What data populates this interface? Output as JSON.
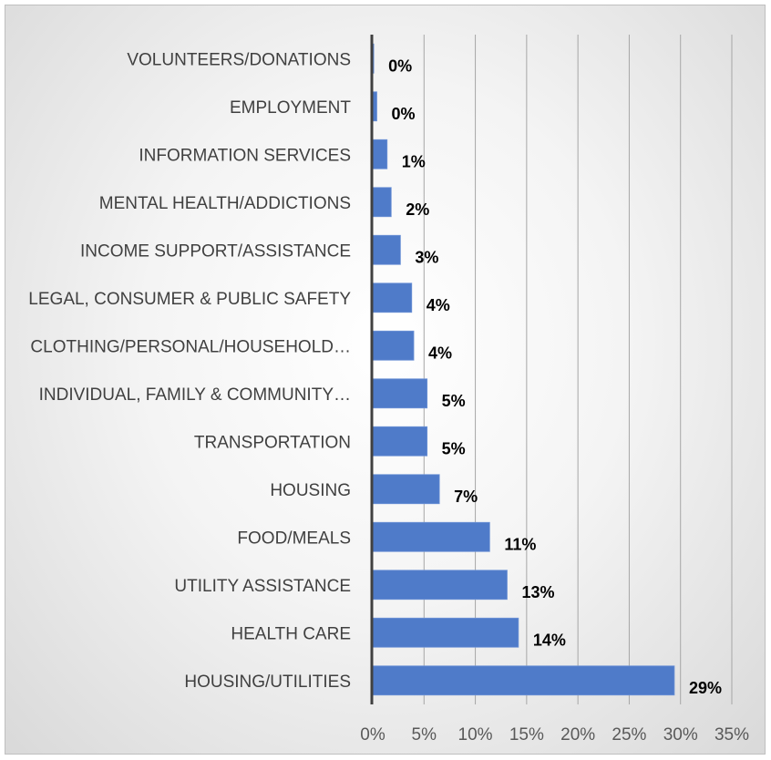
{
  "chart_data": {
    "type": "bar",
    "orientation": "horizontal",
    "categories": [
      "VOLUNTEERS/DONATIONS",
      "EMPLOYMENT",
      "INFORMATION SERVICES",
      "MENTAL HEALTH/ADDICTIONS",
      "INCOME SUPPORT/ASSISTANCE",
      "LEGAL, CONSUMER & PUBLIC SAFETY",
      "CLOTHING/PERSONAL/HOUSEHOLD…",
      "INDIVIDUAL, FAMILY & COMMUNITY…",
      "TRANSPORTATION",
      "HOUSING",
      "FOOD/MEALS",
      "UTILITY ASSISTANCE",
      "HEALTH CARE",
      "HOUSING/UTILITIES"
    ],
    "values": [
      0.1,
      0.4,
      1.4,
      1.8,
      2.7,
      3.8,
      4.0,
      5.3,
      5.3,
      6.5,
      11.4,
      13.1,
      14.2,
      29.4
    ],
    "data_labels": [
      "0%",
      "0%",
      "1%",
      "2%",
      "3%",
      "4%",
      "4%",
      "5%",
      "5%",
      "7%",
      "11%",
      "13%",
      "14%",
      "29%"
    ],
    "x_ticks": [
      "0%",
      "5%",
      "10%",
      "15%",
      "20%",
      "25%",
      "30%",
      "35%"
    ],
    "xlim": [
      0,
      35
    ],
    "title": "",
    "xlabel": "",
    "ylabel": "",
    "grid": "vertical",
    "legend": "none",
    "bar_color": "#4f7bc9"
  }
}
